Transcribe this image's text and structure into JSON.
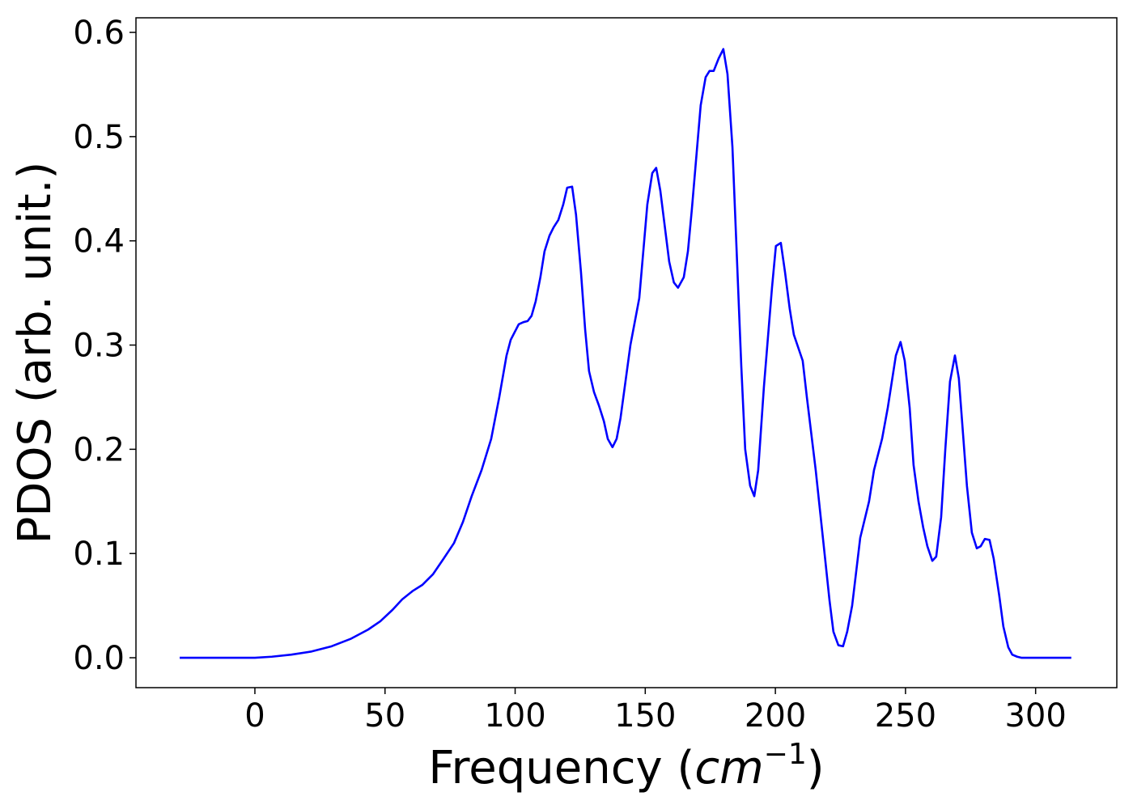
{
  "chart_data": {
    "type": "line",
    "xlabel": [
      "Frequency (",
      "cm",
      "−1",
      ")"
    ],
    "ylabel": "PDOS (arb. unit.)",
    "xlim": [
      -45.7,
      331.2
    ],
    "ylim": [
      -0.0287,
      0.614
    ],
    "xticks": [
      0,
      50,
      100,
      150,
      200,
      250,
      300
    ],
    "yticks": [
      {
        "value": 0,
        "label": "0.0"
      },
      0.1,
      0.2,
      0.3,
      0.4,
      0.5,
      0.6
    ],
    "grid": false,
    "series": [
      {
        "name": "PDOS",
        "color": "#0000ff",
        "x": [
          -28.9,
          0,
          6.5,
          14,
          21.8,
          29.5,
          36.7,
          43.5,
          48.2,
          52.9,
          56.6,
          60.6,
          64.4,
          68.4,
          72.5,
          76.5,
          79.9,
          83.3,
          87.1,
          90.8,
          93.9,
          96.7,
          98.3,
          101.4,
          103.2,
          104.8,
          106.3,
          107.9,
          109.7,
          111.3,
          113.2,
          114.8,
          116.6,
          118.5,
          120.0,
          121.9,
          123.4,
          125.3,
          126.9,
          128.4,
          130.3,
          132.2,
          134.1,
          135.6,
          137.4,
          139.0,
          140.5,
          142.4,
          144.3,
          147.7,
          150.8,
          152.7,
          154.2,
          155.8,
          157.7,
          159.2,
          161.0,
          162.6,
          164.8,
          166.4,
          167.9,
          171.3,
          173.2,
          174.7,
          176.3,
          178.2,
          180.0,
          181.6,
          183.5,
          186.9,
          188.4,
          190.3,
          191.9,
          193.4,
          195.6,
          198.7,
          200.2,
          202.1,
          203.7,
          205.5,
          207.1,
          210.5,
          212.1,
          215.5,
          218.9,
          220.8,
          222.3,
          224.2,
          226.0,
          227.6,
          229.5,
          232.6,
          236.0,
          237.9,
          241.0,
          243.2,
          246.3,
          248.1,
          249.7,
          251.6,
          253.1,
          255.0,
          256.8,
          258.4,
          260.3,
          261.8,
          263.7,
          265.3,
          267.1,
          269.0,
          270.5,
          272.1,
          273.6,
          275.5,
          277.4,
          278.9,
          280.5,
          282.3,
          283.9,
          286.0,
          287.6,
          289.5,
          291.0,
          292.9,
          294.5,
          313.7
        ],
        "values": [
          0,
          0,
          0.001,
          0.003,
          0.006,
          0.011,
          0.018,
          0.027,
          0.035,
          0.046,
          0.056,
          0.064,
          0.07,
          0.08,
          0.095,
          0.11,
          0.13,
          0.155,
          0.18,
          0.21,
          0.25,
          0.29,
          0.305,
          0.32,
          0.322,
          0.323,
          0.328,
          0.342,
          0.365,
          0.39,
          0.405,
          0.413,
          0.42,
          0.435,
          0.451,
          0.452,
          0.425,
          0.37,
          0.315,
          0.275,
          0.255,
          0.242,
          0.227,
          0.21,
          0.202,
          0.21,
          0.23,
          0.265,
          0.3,
          0.345,
          0.435,
          0.465,
          0.47,
          0.448,
          0.41,
          0.38,
          0.36,
          0.355,
          0.365,
          0.39,
          0.43,
          0.53,
          0.557,
          0.563,
          0.563,
          0.575,
          0.584,
          0.56,
          0.49,
          0.28,
          0.2,
          0.165,
          0.155,
          0.18,
          0.26,
          0.355,
          0.395,
          0.398,
          0.37,
          0.335,
          0.31,
          0.285,
          0.25,
          0.18,
          0.1,
          0.055,
          0.025,
          0.012,
          0.011,
          0.025,
          0.05,
          0.115,
          0.15,
          0.18,
          0.21,
          0.24,
          0.29,
          0.303,
          0.285,
          0.24,
          0.185,
          0.15,
          0.125,
          0.107,
          0.093,
          0.097,
          0.135,
          0.2,
          0.265,
          0.29,
          0.268,
          0.215,
          0.165,
          0.12,
          0.105,
          0.107,
          0.114,
          0.113,
          0.095,
          0.06,
          0.03,
          0.01,
          0.003,
          0.001,
          0,
          0
        ]
      }
    ]
  }
}
